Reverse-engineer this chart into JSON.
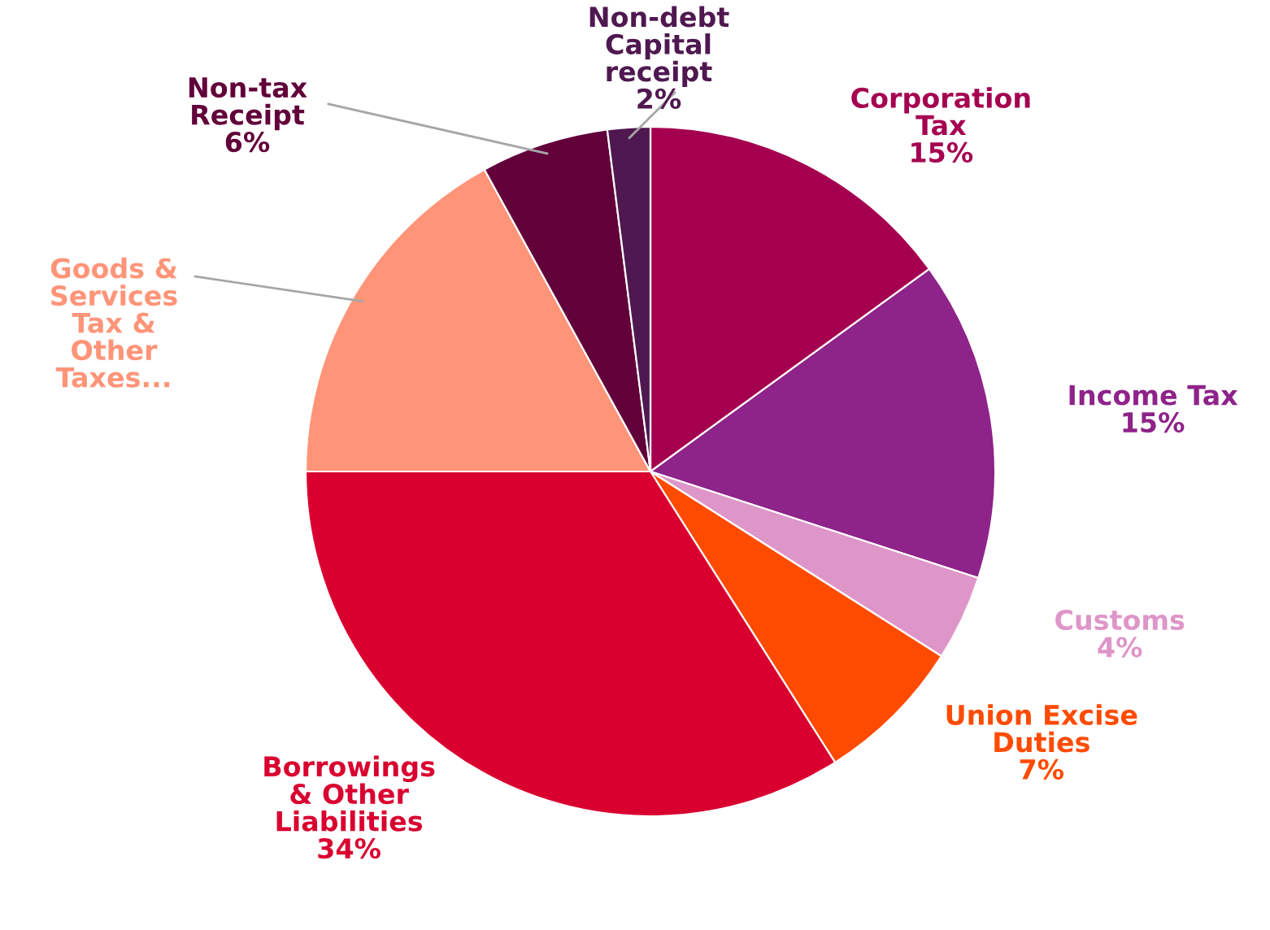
{
  "chart_data": {
    "type": "pie",
    "categories": [
      "Corporation\nTax",
      "Income Tax",
      "Customs",
      "Union Excise\nDuties",
      "Borrowings\n& Other\nLiabilities",
      "Goods &\nServices\nTax &\nOther\nTaxes...",
      "Non-tax\nReceipt",
      "Non-debt\nCapital\nreceipt"
    ],
    "values": [
      15,
      15,
      4,
      7,
      34,
      17,
      6,
      2
    ],
    "value_labels": [
      "15%",
      "15%",
      "4%",
      "7%",
      "34%",
      null,
      "6%",
      "2%"
    ],
    "colors": [
      "#a50050",
      "#8e2389",
      "#de95c8",
      "#ff4b00",
      "#d90030",
      "#ff9478",
      "#62003a",
      "#4f1850"
    ]
  }
}
